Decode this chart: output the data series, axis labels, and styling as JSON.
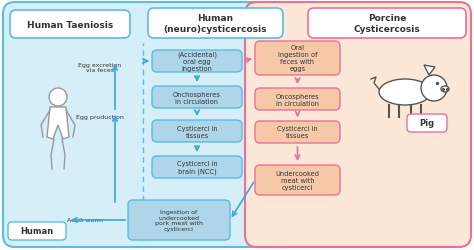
{
  "bg_color": "#ffffff",
  "left_panel_bg": "#d6eef8",
  "left_panel_border": "#5bbce4",
  "right_panel_bg": "#fde8d8",
  "right_panel_border": "#e8729a",
  "human_box_bg": "#aed6e8",
  "human_box_border": "#5bbce4",
  "porcine_box_bg": "#f5c9a8",
  "porcine_box_border": "#e8729a",
  "title_left": "Human Taeniosis",
  "title_center": "Human\n(neuro)cysticercosis",
  "title_right": "Porcine\nCysticercosis",
  "center_boxes": [
    "(Accidental)\noral egg\ningestion",
    "Onchospheres\nin circulation",
    "Cysticerci in\ntissues",
    "Cysticerci in\nbrain (NCC)"
  ],
  "right_boxes": [
    "Oral\ningestion of\nfeces with\neggs",
    "Oncospheres\nin circulation",
    "Cysticerci in\ntissues",
    "Undercooked\nmeat with\ncysticerci"
  ],
  "bottom_center_box": "Ingestion of\nundercooked\npork meat with\ncysticerci",
  "human_label": "Human",
  "pig_label": "Pig",
  "arrow_blue": "#3aa8d8",
  "arrow_pink": "#e8729a",
  "dashed_blue": "#5bbce4",
  "text_dark": "#333333"
}
